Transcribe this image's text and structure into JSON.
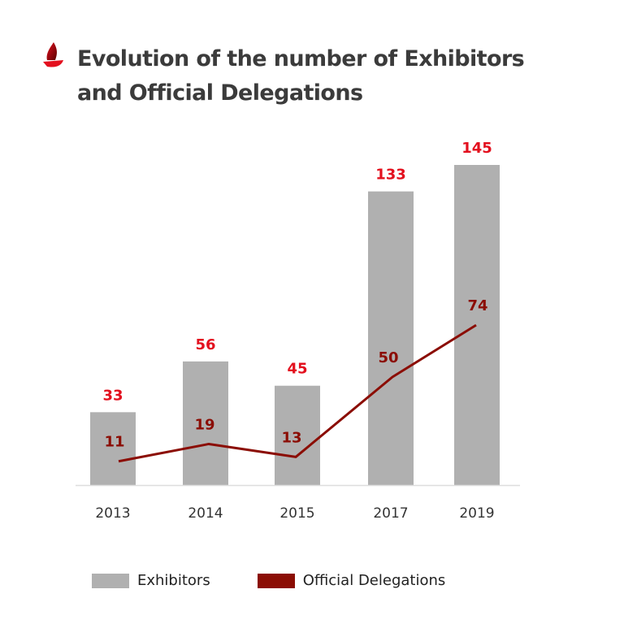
{
  "chart_data": {
    "type": "bar",
    "title": "Evolution of the number of Exhibitors and Official Delegations",
    "title_lines": [
      "Evolution of the number of Exhibitors",
      "and Official Delegations"
    ],
    "categories": [
      "2013",
      "2014",
      "2015",
      "2017",
      "2019"
    ],
    "series": [
      {
        "name": "Exhibitors",
        "type": "bar",
        "values": [
          33,
          56,
          45,
          133,
          145
        ],
        "color": "#b0b0b0",
        "label_color": "#e3101e"
      },
      {
        "name": "Official Delegations",
        "type": "line",
        "values": [
          11,
          19,
          13,
          50,
          74
        ],
        "color": "#8b0d04",
        "label_color": "#8b0d04"
      }
    ],
    "xlabel": "",
    "ylabel": "",
    "ylim": [
      0,
      150
    ],
    "grid": false,
    "legend": {
      "position": "bottom",
      "entries": [
        "Exhibitors",
        "Official Delegations"
      ]
    }
  },
  "brand": {
    "logo_icon": "red-sail-logo",
    "accent": "#e3101e",
    "dark_accent": "#8b0d04"
  }
}
